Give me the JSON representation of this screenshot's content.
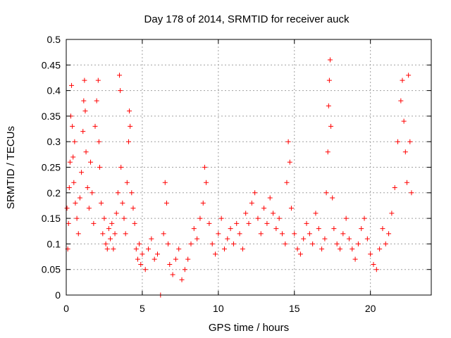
{
  "chart_data": {
    "type": "scatter",
    "title": "Day 178 of 2014, SRMTID for receiver auck",
    "xlabel": "GPS time / hours",
    "ylabel": "SRMTID / TECUs",
    "xlim": [
      0,
      24
    ],
    "ylim": [
      0,
      0.5
    ],
    "grid": true,
    "marker": "+",
    "color": "#ff0000",
    "xticks": [
      0,
      5,
      10,
      15,
      20
    ],
    "xtick_labels": [
      "0",
      "5",
      "10",
      "15",
      "20"
    ],
    "yticks": [
      0,
      0.05,
      0.1,
      0.15,
      0.2,
      0.25,
      0.3,
      0.35,
      0.4,
      0.45,
      0.5
    ],
    "ytick_labels": [
      "0",
      "0.05",
      "0.1",
      "0.15",
      "0.2",
      "0.25",
      "0.3",
      "0.35",
      "0.4",
      "0.45",
      "0.5"
    ],
    "series": [
      {
        "name": "SRMTID",
        "points": [
          [
            0.05,
            0.17
          ],
          [
            0.1,
            0.09
          ],
          [
            0.15,
            0.14
          ],
          [
            0.2,
            0.21
          ],
          [
            0.25,
            0.26
          ],
          [
            0.3,
            0.35
          ],
          [
            0.35,
            0.41
          ],
          [
            0.4,
            0.33
          ],
          [
            0.45,
            0.27
          ],
          [
            0.5,
            0.22
          ],
          [
            0.55,
            0.3
          ],
          [
            0.6,
            0.18
          ],
          [
            0.7,
            0.15
          ],
          [
            0.8,
            0.12
          ],
          [
            0.9,
            0.19
          ],
          [
            1.0,
            0.24
          ],
          [
            1.1,
            0.32
          ],
          [
            1.15,
            0.38
          ],
          [
            1.2,
            0.42
          ],
          [
            1.25,
            0.36
          ],
          [
            1.3,
            0.28
          ],
          [
            1.4,
            0.21
          ],
          [
            1.5,
            0.17
          ],
          [
            1.6,
            0.26
          ],
          [
            1.7,
            0.2
          ],
          [
            1.8,
            0.14
          ],
          [
            1.9,
            0.33
          ],
          [
            2.0,
            0.38
          ],
          [
            2.1,
            0.42
          ],
          [
            2.15,
            0.3
          ],
          [
            2.2,
            0.25
          ],
          [
            2.3,
            0.18
          ],
          [
            2.4,
            0.12
          ],
          [
            2.5,
            0.15
          ],
          [
            2.6,
            0.1
          ],
          [
            2.7,
            0.09
          ],
          [
            2.8,
            0.13
          ],
          [
            2.9,
            0.11
          ],
          [
            3.0,
            0.14
          ],
          [
            3.1,
            0.09
          ],
          [
            3.2,
            0.12
          ],
          [
            3.3,
            0.16
          ],
          [
            3.4,
            0.2
          ],
          [
            3.5,
            0.43
          ],
          [
            3.55,
            0.4
          ],
          [
            3.6,
            0.25
          ],
          [
            3.7,
            0.18
          ],
          [
            3.8,
            0.15
          ],
          [
            3.9,
            0.12
          ],
          [
            4.0,
            0.22
          ],
          [
            4.1,
            0.3
          ],
          [
            4.15,
            0.36
          ],
          [
            4.2,
            0.33
          ],
          [
            4.3,
            0.2
          ],
          [
            4.4,
            0.17
          ],
          [
            4.5,
            0.14
          ],
          [
            4.6,
            0.09
          ],
          [
            4.7,
            0.07
          ],
          [
            4.8,
            0.1
          ],
          [
            4.9,
            0.06
          ],
          [
            5.0,
            0.08
          ],
          [
            5.2,
            0.05
          ],
          [
            5.4,
            0.09
          ],
          [
            5.6,
            0.11
          ],
          [
            5.8,
            0.07
          ],
          [
            6.0,
            0.08
          ],
          [
            6.2,
            0.0
          ],
          [
            6.4,
            0.12
          ],
          [
            6.5,
            0.22
          ],
          [
            6.6,
            0.18
          ],
          [
            6.7,
            0.1
          ],
          [
            6.8,
            0.06
          ],
          [
            7.0,
            0.04
          ],
          [
            7.2,
            0.07
          ],
          [
            7.4,
            0.09
          ],
          [
            7.6,
            0.03
          ],
          [
            7.8,
            0.05
          ],
          [
            8.0,
            0.07
          ],
          [
            8.2,
            0.1
          ],
          [
            8.4,
            0.13
          ],
          [
            8.6,
            0.11
          ],
          [
            8.8,
            0.15
          ],
          [
            9.0,
            0.18
          ],
          [
            9.1,
            0.25
          ],
          [
            9.2,
            0.22
          ],
          [
            9.4,
            0.14
          ],
          [
            9.6,
            0.1
          ],
          [
            9.8,
            0.08
          ],
          [
            10.0,
            0.12
          ],
          [
            10.2,
            0.15
          ],
          [
            10.4,
            0.09
          ],
          [
            10.6,
            0.11
          ],
          [
            10.8,
            0.13
          ],
          [
            11.0,
            0.1
          ],
          [
            11.2,
            0.14
          ],
          [
            11.4,
            0.12
          ],
          [
            11.6,
            0.09
          ],
          [
            11.8,
            0.16
          ],
          [
            12.0,
            0.14
          ],
          [
            12.2,
            0.18
          ],
          [
            12.4,
            0.2
          ],
          [
            12.6,
            0.15
          ],
          [
            12.8,
            0.12
          ],
          [
            13.0,
            0.17
          ],
          [
            13.2,
            0.14
          ],
          [
            13.4,
            0.19
          ],
          [
            13.6,
            0.16
          ],
          [
            13.8,
            0.13
          ],
          [
            14.0,
            0.15
          ],
          [
            14.2,
            0.12
          ],
          [
            14.4,
            0.1
          ],
          [
            14.5,
            0.22
          ],
          [
            14.6,
            0.3
          ],
          [
            14.7,
            0.26
          ],
          [
            14.8,
            0.17
          ],
          [
            15.0,
            0.12
          ],
          [
            15.2,
            0.09
          ],
          [
            15.4,
            0.08
          ],
          [
            15.6,
            0.11
          ],
          [
            15.8,
            0.14
          ],
          [
            16.0,
            0.12
          ],
          [
            16.2,
            0.1
          ],
          [
            16.4,
            0.16
          ],
          [
            16.6,
            0.13
          ],
          [
            16.8,
            0.09
          ],
          [
            17.0,
            0.11
          ],
          [
            17.1,
            0.2
          ],
          [
            17.2,
            0.28
          ],
          [
            17.25,
            0.37
          ],
          [
            17.3,
            0.42
          ],
          [
            17.35,
            0.46
          ],
          [
            17.4,
            0.33
          ],
          [
            17.5,
            0.19
          ],
          [
            17.6,
            0.13
          ],
          [
            17.8,
            0.1
          ],
          [
            18.0,
            0.09
          ],
          [
            18.2,
            0.12
          ],
          [
            18.4,
            0.15
          ],
          [
            18.6,
            0.11
          ],
          [
            18.8,
            0.09
          ],
          [
            19.0,
            0.07
          ],
          [
            19.2,
            0.1
          ],
          [
            19.4,
            0.13
          ],
          [
            19.6,
            0.15
          ],
          [
            19.8,
            0.11
          ],
          [
            20.0,
            0.08
          ],
          [
            20.2,
            0.06
          ],
          [
            20.4,
            0.05
          ],
          [
            20.6,
            0.09
          ],
          [
            20.8,
            0.13
          ],
          [
            21.0,
            0.1
          ],
          [
            21.2,
            0.12
          ],
          [
            21.4,
            0.16
          ],
          [
            21.6,
            0.21
          ],
          [
            21.8,
            0.3
          ],
          [
            22.0,
            0.38
          ],
          [
            22.1,
            0.42
          ],
          [
            22.2,
            0.34
          ],
          [
            22.3,
            0.28
          ],
          [
            22.4,
            0.22
          ],
          [
            22.5,
            0.43
          ],
          [
            22.6,
            0.3
          ],
          [
            22.7,
            0.2
          ]
        ]
      }
    ]
  }
}
